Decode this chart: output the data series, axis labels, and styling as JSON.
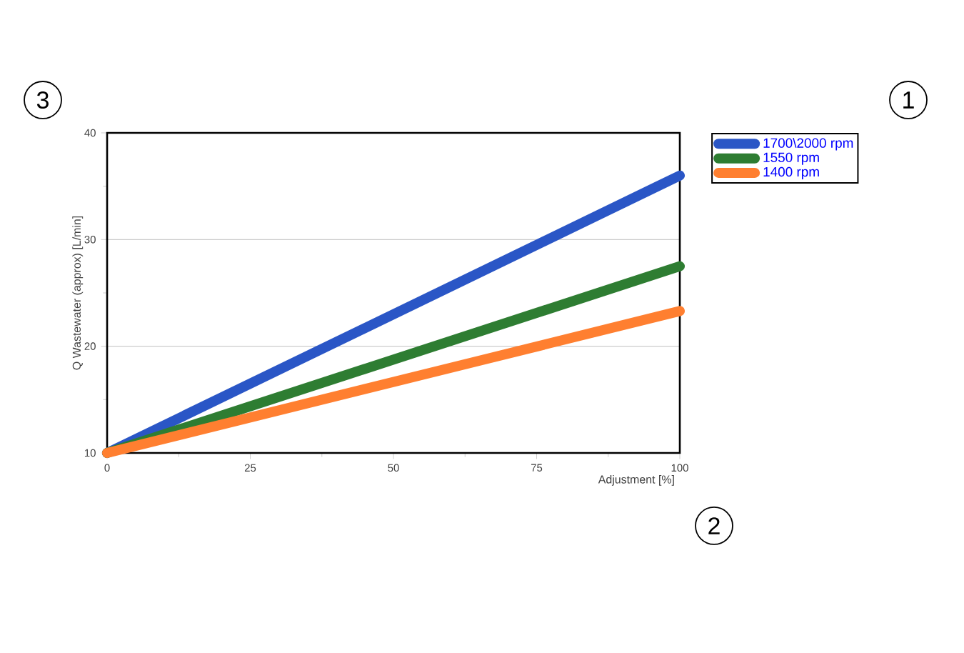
{
  "chart_data": {
    "type": "line",
    "xlabel": "Adjustment [%]",
    "ylabel": "Q Wastewater (approx) [L/min]",
    "x": [
      0,
      100
    ],
    "series": [
      {
        "name": "1700\\2000 rpm",
        "color": "#2a56c6",
        "values": [
          10,
          36
        ]
      },
      {
        "name": "1550 rpm",
        "color": "#2e7d32",
        "values": [
          10,
          27.5
        ]
      },
      {
        "name": "1400 rpm",
        "color": "#ff7f30",
        "values": [
          10,
          23.3
        ]
      }
    ],
    "xlim": [
      0,
      100
    ],
    "ylim": [
      10,
      40
    ],
    "xticks": [
      0,
      25,
      50,
      75,
      100
    ],
    "yticks": [
      10,
      20,
      30,
      40
    ],
    "grid": "y",
    "legend": "top right",
    "marker": "none",
    "line_style": "solid",
    "annotations": [
      "1",
      "2",
      "3"
    ]
  }
}
